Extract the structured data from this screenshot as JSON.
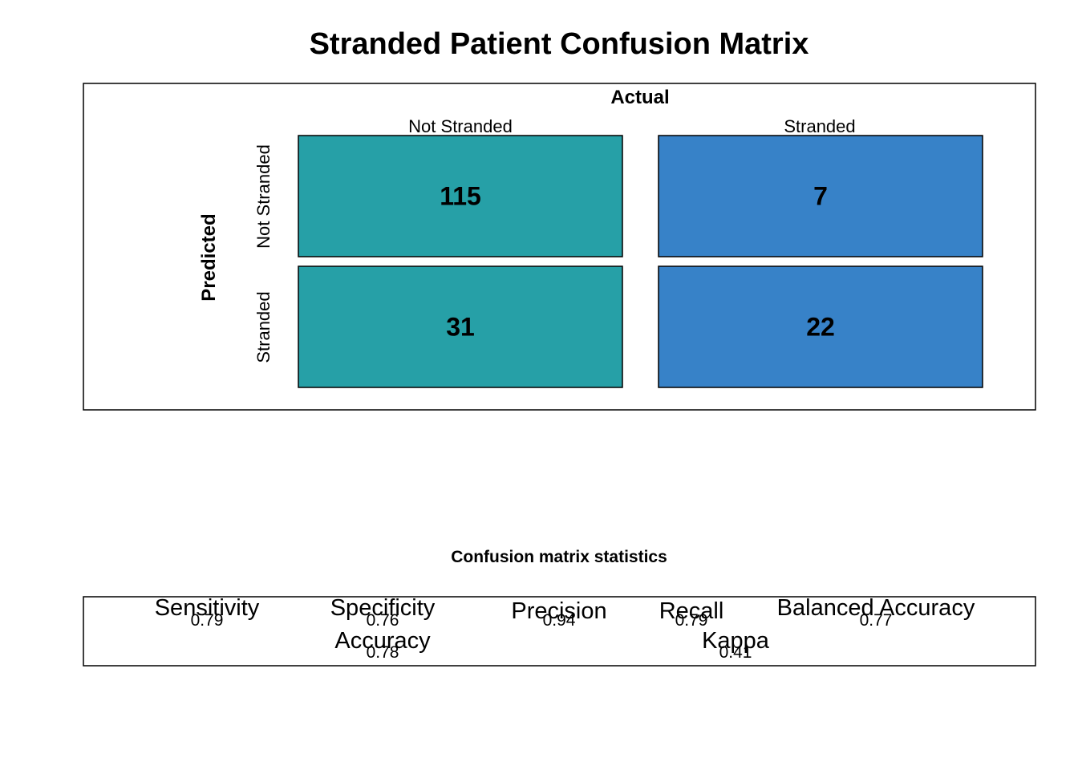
{
  "chart_data": {
    "type": "heatmap",
    "title": "Stranded Patient Confusion Matrix",
    "xlabel": "Actual",
    "ylabel": "Predicted",
    "x_categories": [
      "Not Stranded",
      "Stranded"
    ],
    "y_categories": [
      "Not Stranded",
      "Stranded"
    ],
    "matrix": [
      [
        115,
        7
      ],
      [
        31,
        22
      ]
    ],
    "column_colors": [
      "#26A0A7",
      "#3782C8"
    ],
    "statistics": {
      "title": "Confusion matrix statistics",
      "row1": [
        {
          "name": "Sensitivity",
          "value": "0.79"
        },
        {
          "name": "Specificity",
          "value": "0.76"
        },
        {
          "name": "Precision",
          "value": "0.94"
        },
        {
          "name": "Recall",
          "value": "0.79"
        },
        {
          "name": "Balanced Accuracy",
          "value": "0.77"
        }
      ],
      "row2": [
        {
          "name": "Accuracy",
          "value": "0.78"
        },
        {
          "name": "Kappa",
          "value": "0.41"
        }
      ]
    }
  }
}
